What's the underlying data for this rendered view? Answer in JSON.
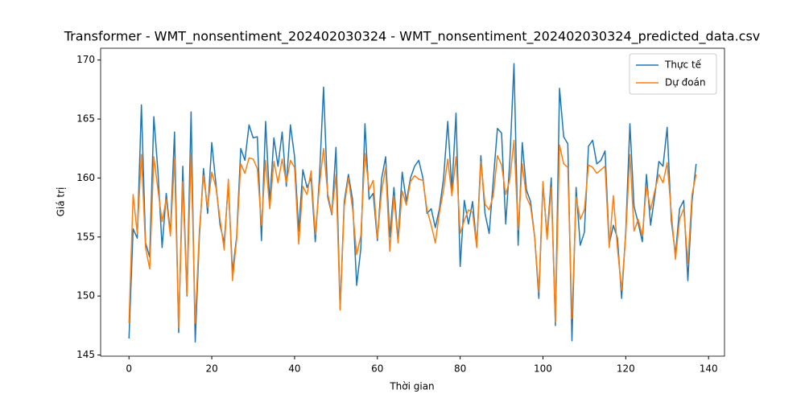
{
  "chart_data": {
    "type": "line",
    "title": "Transformer - WMT_nonsentiment_202402030324 - WMT_nonsentiment_202402030324_predicted_data.csv",
    "xlabel": "Thời gian",
    "ylabel": "Giá trị",
    "x": [
      0,
      1,
      2,
      3,
      4,
      5,
      6,
      7,
      8,
      9,
      10,
      11,
      12,
      13,
      14,
      15,
      16,
      17,
      18,
      19,
      20,
      21,
      22,
      23,
      24,
      25,
      26,
      27,
      28,
      29,
      30,
      31,
      32,
      33,
      34,
      35,
      36,
      37,
      38,
      39,
      40,
      41,
      42,
      43,
      44,
      45,
      46,
      47,
      48,
      49,
      50,
      51,
      52,
      53,
      54,
      55,
      56,
      57,
      58,
      59,
      60,
      61,
      62,
      63,
      64,
      65,
      66,
      67,
      68,
      69,
      70,
      71,
      72,
      73,
      74,
      75,
      76,
      77,
      78,
      79,
      80,
      81,
      82,
      83,
      84,
      85,
      86,
      87,
      88,
      89,
      90,
      91,
      92,
      93,
      94,
      95,
      96,
      97,
      98,
      99,
      100,
      101,
      102,
      103,
      104,
      105,
      106,
      107,
      108,
      109,
      110,
      111,
      112,
      113,
      114,
      115,
      116,
      117,
      118,
      119,
      120,
      121,
      122,
      123,
      124,
      125,
      126,
      127,
      128,
      129,
      130,
      131,
      132,
      133,
      134,
      135,
      136,
      137
    ],
    "series": [
      {
        "name": "Thực tế",
        "color": "#1f77b4",
        "values": [
          146.4,
          155.7,
          154.9,
          166.2,
          154.5,
          153.3,
          165.2,
          160.5,
          154.1,
          158.7,
          155.3,
          163.9,
          146.9,
          161.0,
          150.0,
          165.6,
          146.1,
          155.0,
          160.8,
          157.0,
          163.0,
          159.5,
          156.0,
          154.5,
          159.5,
          152.0,
          155.0,
          162.5,
          161.5,
          164.5,
          163.4,
          163.5,
          154.7,
          164.8,
          157.9,
          163.4,
          161.0,
          163.9,
          159.3,
          164.5,
          161.8,
          155.5,
          160.7,
          159.2,
          160.0,
          154.6,
          160.0,
          167.7,
          158.4,
          156.9,
          162.6,
          148.9,
          158.0,
          160.3,
          158.2,
          150.9,
          154.0,
          164.6,
          158.2,
          158.7,
          154.7,
          159.9,
          161.8,
          155.0,
          159.2,
          154.7,
          160.5,
          158.0,
          160.0,
          161.0,
          161.5,
          160.0,
          157.0,
          157.4,
          155.8,
          157.4,
          160.0,
          164.8,
          159.0,
          165.5,
          152.5,
          158.1,
          156.1,
          158.0,
          154.2,
          161.9,
          157.0,
          155.3,
          159.8,
          164.2,
          163.8,
          156.1,
          161.5,
          169.7,
          154.3,
          163.0,
          159.0,
          158.0,
          155.0,
          149.8,
          159.5,
          155.0,
          160.0,
          147.5,
          167.6,
          163.5,
          162.9,
          146.2,
          159.2,
          154.3,
          155.4,
          162.7,
          163.2,
          161.2,
          161.5,
          162.3,
          154.4,
          156.0,
          154.9,
          149.8,
          155.5,
          164.6,
          157.6,
          156.2,
          154.6,
          160.3,
          156.0,
          158.5,
          161.4,
          161.0,
          164.3,
          156.4,
          153.5,
          157.4,
          158.1,
          151.3,
          158.0,
          161.2
        ]
      },
      {
        "name": "Dự đoán",
        "color": "#ff7f0e",
        "values": [
          147.7,
          158.6,
          155.3,
          162.0,
          154.1,
          152.3,
          161.8,
          159.0,
          156.3,
          158.2,
          155.1,
          161.6,
          147.3,
          159.7,
          150.1,
          162.1,
          147.7,
          155.5,
          160.2,
          157.5,
          160.5,
          159.2,
          156.5,
          153.9,
          159.9,
          151.3,
          154.8,
          161.2,
          160.4,
          161.7,
          161.6,
          160.8,
          156.0,
          161.5,
          157.4,
          161.4,
          159.6,
          161.6,
          159.6,
          161.5,
          160.9,
          154.4,
          159.3,
          158.6,
          160.6,
          155.2,
          159.3,
          162.5,
          158.7,
          157.0,
          160.3,
          148.8,
          157.6,
          160.0,
          157.4,
          153.5,
          155.1,
          162.1,
          159.0,
          159.8,
          154.9,
          158.8,
          160.9,
          153.8,
          158.5,
          154.5,
          158.9,
          157.7,
          159.7,
          160.2,
          159.9,
          159.8,
          157.3,
          156.0,
          154.5,
          157.1,
          159.0,
          161.6,
          158.5,
          161.8,
          155.3,
          156.4,
          157.3,
          157.1,
          154.1,
          161.4,
          157.8,
          157.3,
          158.5,
          161.9,
          161.1,
          158.6,
          159.9,
          163.2,
          155.6,
          161.2,
          158.4,
          157.6,
          155.0,
          150.3,
          159.7,
          154.8,
          159.2,
          147.8,
          162.8,
          161.2,
          160.9,
          148.1,
          158.4,
          156.5,
          157.3,
          161.1,
          160.9,
          160.4,
          160.7,
          161.0,
          154.1,
          158.5,
          154.0,
          150.5,
          155.2,
          162.0,
          155.5,
          156.5,
          155.1,
          159.3,
          157.3,
          158.9,
          160.3,
          159.6,
          161.3,
          157.1,
          153.1,
          156.5,
          157.4,
          152.8,
          158.6,
          160.3
        ]
      }
    ],
    "xlim": [
      -6.85,
      143.85
    ],
    "xticks": [
      0,
      20,
      40,
      60,
      80,
      100,
      120,
      140
    ],
    "ylim": [
      144.9,
      171.0
    ],
    "yticks": [
      145,
      150,
      155,
      160,
      165,
      170
    ],
    "legend": "upper right",
    "grid": false
  }
}
